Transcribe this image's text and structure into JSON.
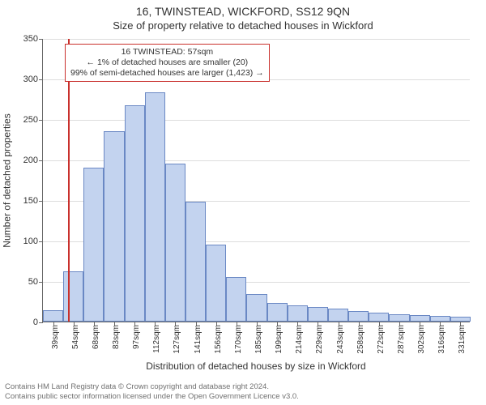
{
  "header": {
    "address": "16, TWINSTEAD, WICKFORD, SS12 9QN",
    "subtitle": "Size of property relative to detached houses in Wickford"
  },
  "axes": {
    "ylabel": "Number of detached properties",
    "xlabel": "Distribution of detached houses by size in Wickford",
    "ymax": 350,
    "ytick_step": 50,
    "yticks": [
      0,
      50,
      100,
      150,
      200,
      250,
      300,
      350
    ],
    "grid_color": "#dddddd",
    "axis_color": "#666666",
    "label_fontsize": 12,
    "tick_fontsize": 11
  },
  "chart": {
    "type": "histogram",
    "bar_fill": "#c3d3ef",
    "bar_stroke": "#6a88c4",
    "background_color": "#ffffff",
    "categories": [
      "39sqm",
      "54sqm",
      "68sqm",
      "83sqm",
      "97sqm",
      "112sqm",
      "127sqm",
      "141sqm",
      "156sqm",
      "170sqm",
      "185sqm",
      "199sqm",
      "214sqm",
      "229sqm",
      "243sqm",
      "258sqm",
      "272sqm",
      "287sqm",
      "302sqm",
      "316sqm",
      "331sqm"
    ],
    "values": [
      14,
      62,
      190,
      235,
      267,
      283,
      195,
      148,
      95,
      55,
      34,
      23,
      20,
      18,
      16,
      13,
      11,
      9,
      8,
      7,
      6
    ]
  },
  "marker": {
    "color": "#c9302c",
    "bin_index": 1,
    "position_in_bin": 0.25
  },
  "annotation": {
    "border_color": "#c9302c",
    "bg_color": "#ffffff",
    "line1": "16 TWINSTEAD: 57sqm",
    "line2": "← 1% of detached houses are smaller (20)",
    "line3": "99% of semi-detached houses are larger (1,423) →",
    "fontsize": 10.5
  },
  "footer": {
    "line1": "Contains HM Land Registry data © Crown copyright and database right 2024.",
    "line2": "Contains public sector information licensed under the Open Government Licence v3.0.",
    "color": "#707070",
    "fontsize": 9.5
  }
}
